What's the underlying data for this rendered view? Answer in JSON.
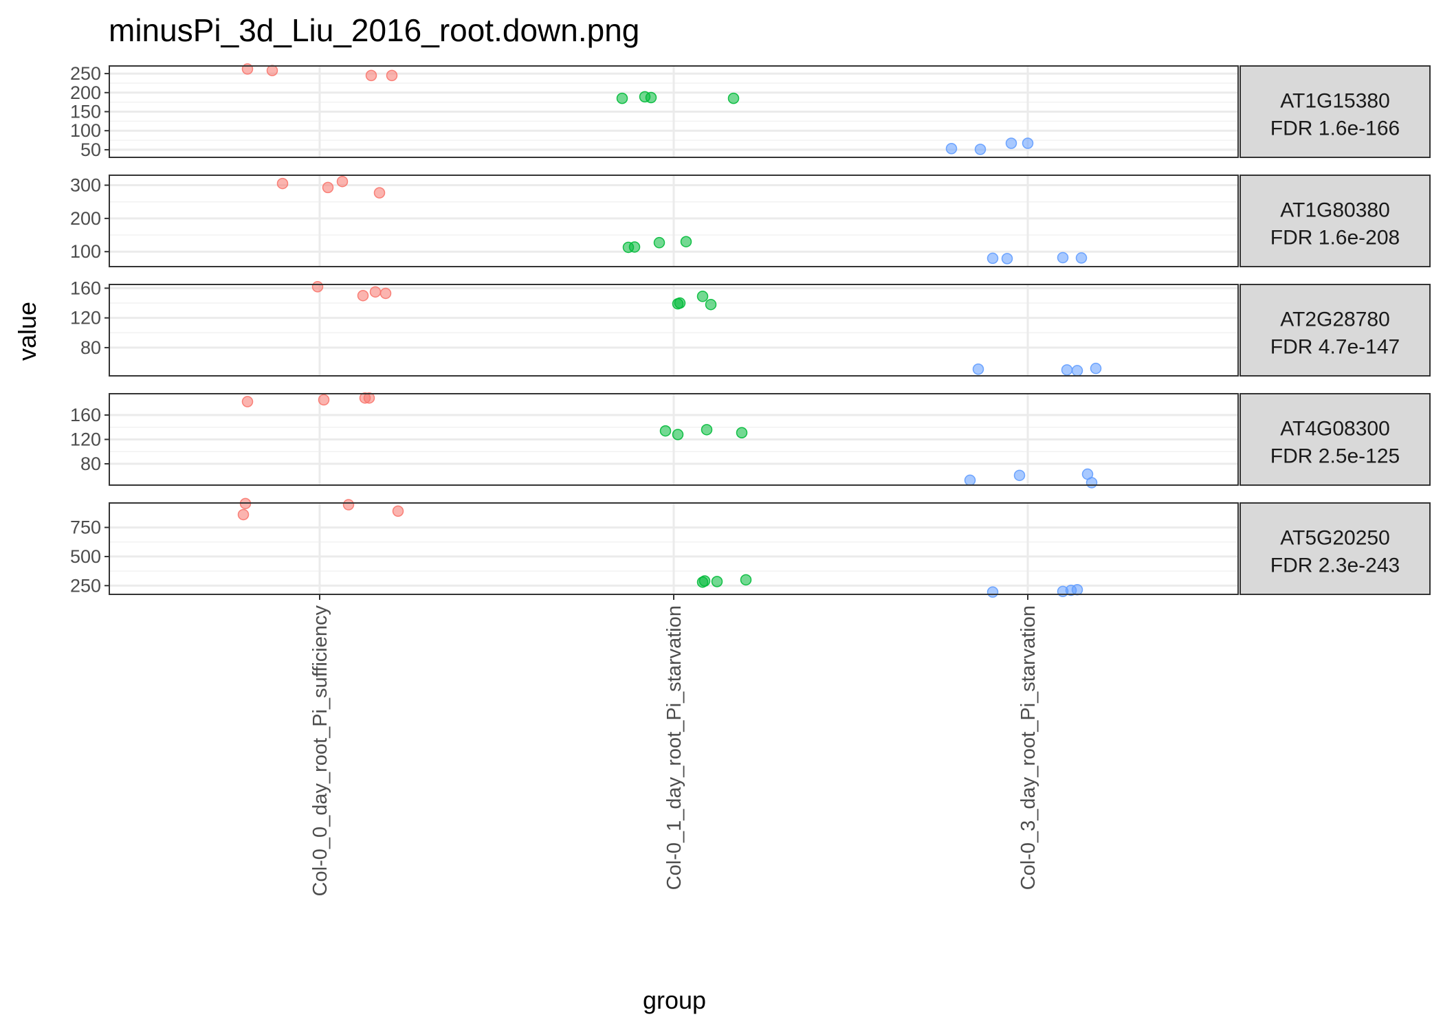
{
  "chart_data": {
    "type": "scatter",
    "title": "minusPi_3d_Liu_2016_root.down.png",
    "xlabel": "group",
    "ylabel": "value",
    "categories": [
      "Col-0_0_day_root_Pi_sufficiency",
      "Col-0_1_day_root_Pi_starvation",
      "Col-0_3_day_root_Pi_starvation"
    ],
    "colors": [
      "#F8766D",
      "#00BA38",
      "#619CFF"
    ],
    "panels": [
      {
        "label_gene": "AT1G15380",
        "label_fdr": "FDR 1.6e-166",
        "ylim": [
          30,
          270
        ],
        "yticks": [
          50,
          100,
          150,
          200,
          250
        ],
        "tick_labels": [
          "50",
          "100",
          "150",
          "200",
          "250"
        ],
        "points": [
          {
            "group": 0,
            "jitter": -0.35,
            "value": 262
          },
          {
            "group": 0,
            "jitter": -0.23,
            "value": 258
          },
          {
            "group": 0,
            "jitter": 0.25,
            "value": 245
          },
          {
            "group": 0,
            "jitter": 0.35,
            "value": 245
          },
          {
            "group": 1,
            "jitter": -0.25,
            "value": 185
          },
          {
            "group": 1,
            "jitter": -0.14,
            "value": 189
          },
          {
            "group": 1,
            "jitter": -0.11,
            "value": 187
          },
          {
            "group": 1,
            "jitter": 0.29,
            "value": 185
          },
          {
            "group": 2,
            "jitter": -0.37,
            "value": 53
          },
          {
            "group": 2,
            "jitter": -0.23,
            "value": 51
          },
          {
            "group": 2,
            "jitter": -0.08,
            "value": 67
          },
          {
            "group": 2,
            "jitter": 0.0,
            "value": 67
          }
        ]
      },
      {
        "label_gene": "AT1G80380",
        "label_fdr": "FDR 1.6e-208",
        "ylim": [
          55,
          330
        ],
        "yticks": [
          100,
          200,
          300
        ],
        "tick_labels": [
          "100",
          "200",
          "300"
        ],
        "points": [
          {
            "group": 0,
            "jitter": -0.18,
            "value": 305
          },
          {
            "group": 0,
            "jitter": 0.04,
            "value": 293
          },
          {
            "group": 0,
            "jitter": 0.11,
            "value": 311
          },
          {
            "group": 0,
            "jitter": 0.29,
            "value": 277
          },
          {
            "group": 1,
            "jitter": -0.22,
            "value": 113
          },
          {
            "group": 1,
            "jitter": -0.19,
            "value": 114
          },
          {
            "group": 1,
            "jitter": -0.07,
            "value": 127
          },
          {
            "group": 1,
            "jitter": 0.06,
            "value": 130
          },
          {
            "group": 2,
            "jitter": -0.17,
            "value": 80
          },
          {
            "group": 2,
            "jitter": -0.1,
            "value": 79
          },
          {
            "group": 2,
            "jitter": 0.17,
            "value": 82
          },
          {
            "group": 2,
            "jitter": 0.26,
            "value": 81
          }
        ]
      },
      {
        "label_gene": "AT2G28780",
        "label_fdr": "FDR 4.7e-147",
        "ylim": [
          42,
          165
        ],
        "yticks": [
          80,
          120,
          160
        ],
        "tick_labels": [
          "80",
          "120",
          "160"
        ],
        "points": [
          {
            "group": 0,
            "jitter": -0.01,
            "value": 162
          },
          {
            "group": 0,
            "jitter": 0.21,
            "value": 150
          },
          {
            "group": 0,
            "jitter": 0.27,
            "value": 155
          },
          {
            "group": 0,
            "jitter": 0.32,
            "value": 153
          },
          {
            "group": 1,
            "jitter": 0.02,
            "value": 139
          },
          {
            "group": 1,
            "jitter": 0.03,
            "value": 140
          },
          {
            "group": 1,
            "jitter": 0.14,
            "value": 149
          },
          {
            "group": 1,
            "jitter": 0.18,
            "value": 138
          },
          {
            "group": 2,
            "jitter": -0.24,
            "value": 51
          },
          {
            "group": 2,
            "jitter": 0.19,
            "value": 50
          },
          {
            "group": 2,
            "jitter": 0.24,
            "value": 49
          },
          {
            "group": 2,
            "jitter": 0.33,
            "value": 52
          }
        ]
      },
      {
        "label_gene": "AT4G08300",
        "label_fdr": "FDR 2.5e-125",
        "ylim": [
          45,
          195
        ],
        "yticks": [
          80,
          120,
          160
        ],
        "tick_labels": [
          "80",
          "120",
          "160"
        ],
        "points": [
          {
            "group": 0,
            "jitter": -0.35,
            "value": 182
          },
          {
            "group": 0,
            "jitter": 0.02,
            "value": 185
          },
          {
            "group": 0,
            "jitter": 0.22,
            "value": 188
          },
          {
            "group": 0,
            "jitter": 0.24,
            "value": 188
          },
          {
            "group": 1,
            "jitter": -0.04,
            "value": 134
          },
          {
            "group": 1,
            "jitter": 0.02,
            "value": 128
          },
          {
            "group": 1,
            "jitter": 0.16,
            "value": 136
          },
          {
            "group": 1,
            "jitter": 0.33,
            "value": 131
          },
          {
            "group": 2,
            "jitter": -0.28,
            "value": 53
          },
          {
            "group": 2,
            "jitter": -0.04,
            "value": 61
          },
          {
            "group": 2,
            "jitter": 0.29,
            "value": 63
          },
          {
            "group": 2,
            "jitter": 0.31,
            "value": 49
          }
        ]
      },
      {
        "label_gene": "AT5G20250",
        "label_fdr": "FDR 2.3e-243",
        "ylim": [
          175,
          960
        ],
        "yticks": [
          250,
          500,
          750
        ],
        "tick_labels": [
          "250",
          "500",
          "750"
        ],
        "points": [
          {
            "group": 0,
            "jitter": -0.37,
            "value": 860
          },
          {
            "group": 0,
            "jitter": -0.36,
            "value": 955
          },
          {
            "group": 0,
            "jitter": 0.14,
            "value": 945
          },
          {
            "group": 0,
            "jitter": 0.38,
            "value": 890
          },
          {
            "group": 1,
            "jitter": 0.14,
            "value": 280
          },
          {
            "group": 1,
            "jitter": 0.15,
            "value": 290
          },
          {
            "group": 1,
            "jitter": 0.21,
            "value": 285
          },
          {
            "group": 1,
            "jitter": 0.35,
            "value": 300
          },
          {
            "group": 2,
            "jitter": 0.17,
            "value": 200
          },
          {
            "group": 2,
            "jitter": 0.21,
            "value": 210
          },
          {
            "group": 2,
            "jitter": 0.24,
            "value": 215
          },
          {
            "group": 2,
            "jitter": -0.17,
            "value": 195
          }
        ]
      }
    ],
    "grid": true,
    "legend": "none"
  }
}
